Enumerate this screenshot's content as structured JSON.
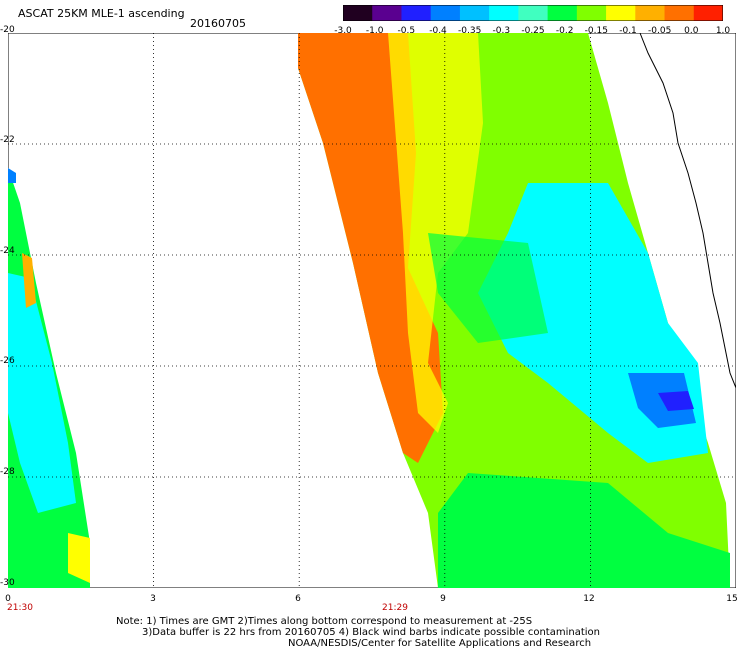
{
  "header": {
    "title": "ASCAT 25KM MLE-1 ascending",
    "date": "20160705"
  },
  "colorbar": {
    "labels": [
      "-3.0",
      "-1.0",
      "-0.5",
      "-0.4",
      "-0.35",
      "-0.3",
      "-0.25",
      "-0.2",
      "-0.15",
      "-0.1",
      "-0.05",
      "0.0",
      "1.0"
    ],
    "colors": [
      "#200020",
      "#5a0090",
      "#2020ff",
      "#0080ff",
      "#00c0ff",
      "#00ffff",
      "#40ffc0",
      "#00ff40",
      "#80ff00",
      "#ffff00",
      "#ffb000",
      "#ff7000",
      "#ff2000"
    ]
  },
  "axes": {
    "y_ticks": [
      "-20",
      "-22",
      "-24",
      "-26",
      "-28",
      "-30"
    ],
    "x_ticks": [
      "0",
      "3",
      "6",
      "9",
      "12",
      "15"
    ]
  },
  "times": [
    "21:30",
    "21:29"
  ],
  "notes": {
    "line1": "Note: 1) Times are GMT 2)Times along bottom correspond to measurement at -25S",
    "line2": "3)Data buffer is 22 hrs from 20160705 4) Black wind barbs indicate possible contamination",
    "line3": "NOAA/NESDIS/Center for Satellite Applications and Research"
  }
}
